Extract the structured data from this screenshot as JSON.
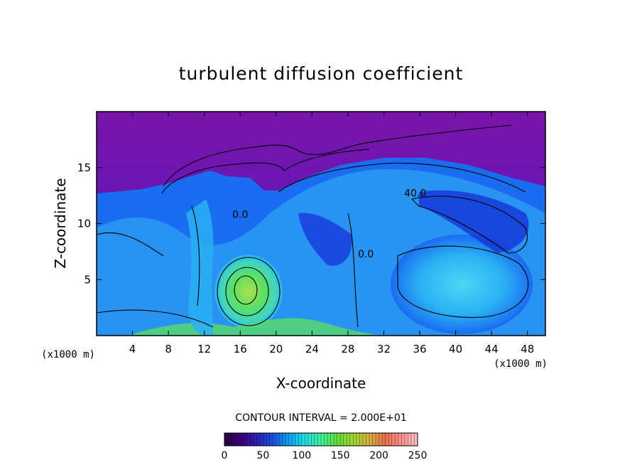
{
  "chart_data": {
    "type": "heatmap",
    "title": "turbulent diffusion coefficient",
    "xlabel": "X-coordinate",
    "ylabel": "Z-coordinate",
    "x_unit": "(x1000 m)",
    "z_unit": "(x1000 m)",
    "xlim": [
      0,
      50
    ],
    "ylim": [
      0,
      20
    ],
    "x_ticks": [
      4,
      8,
      12,
      16,
      20,
      24,
      28,
      32,
      36,
      40,
      44,
      48
    ],
    "y_ticks": [
      5,
      10,
      15
    ],
    "contour_interval_text": "CONTOUR INTERVAL = 2.000E+01",
    "contour_labels": [
      {
        "text": "40.0",
        "x": 35.5,
        "z": 12.4
      },
      {
        "text": "0.0",
        "x": 16.0,
        "z": 10.5
      },
      {
        "text": "0.0",
        "x": 30.0,
        "z": 7.0
      }
    ],
    "colorbar": {
      "min": 0,
      "max": 250,
      "ticks": [
        0,
        50,
        100,
        150,
        200,
        250
      ],
      "colors": [
        "#2a0040",
        "#3c007a",
        "#3020b0",
        "#1850e0",
        "#10a0f0",
        "#20e0e0",
        "#40f0a0",
        "#60e040",
        "#a0d830",
        "#d8b040",
        "#e87050",
        "#ff9090",
        "#ffc0c0"
      ]
    },
    "field_colors": {
      "background_top": "#7a14a8",
      "deep_blue": "#1638d8",
      "mid_blue": "#1a6cf0",
      "light_blue": "#2ab0f4",
      "cyan": "#40d6f0",
      "green": "#5ce060",
      "yellow_green": "#9ee050"
    }
  }
}
